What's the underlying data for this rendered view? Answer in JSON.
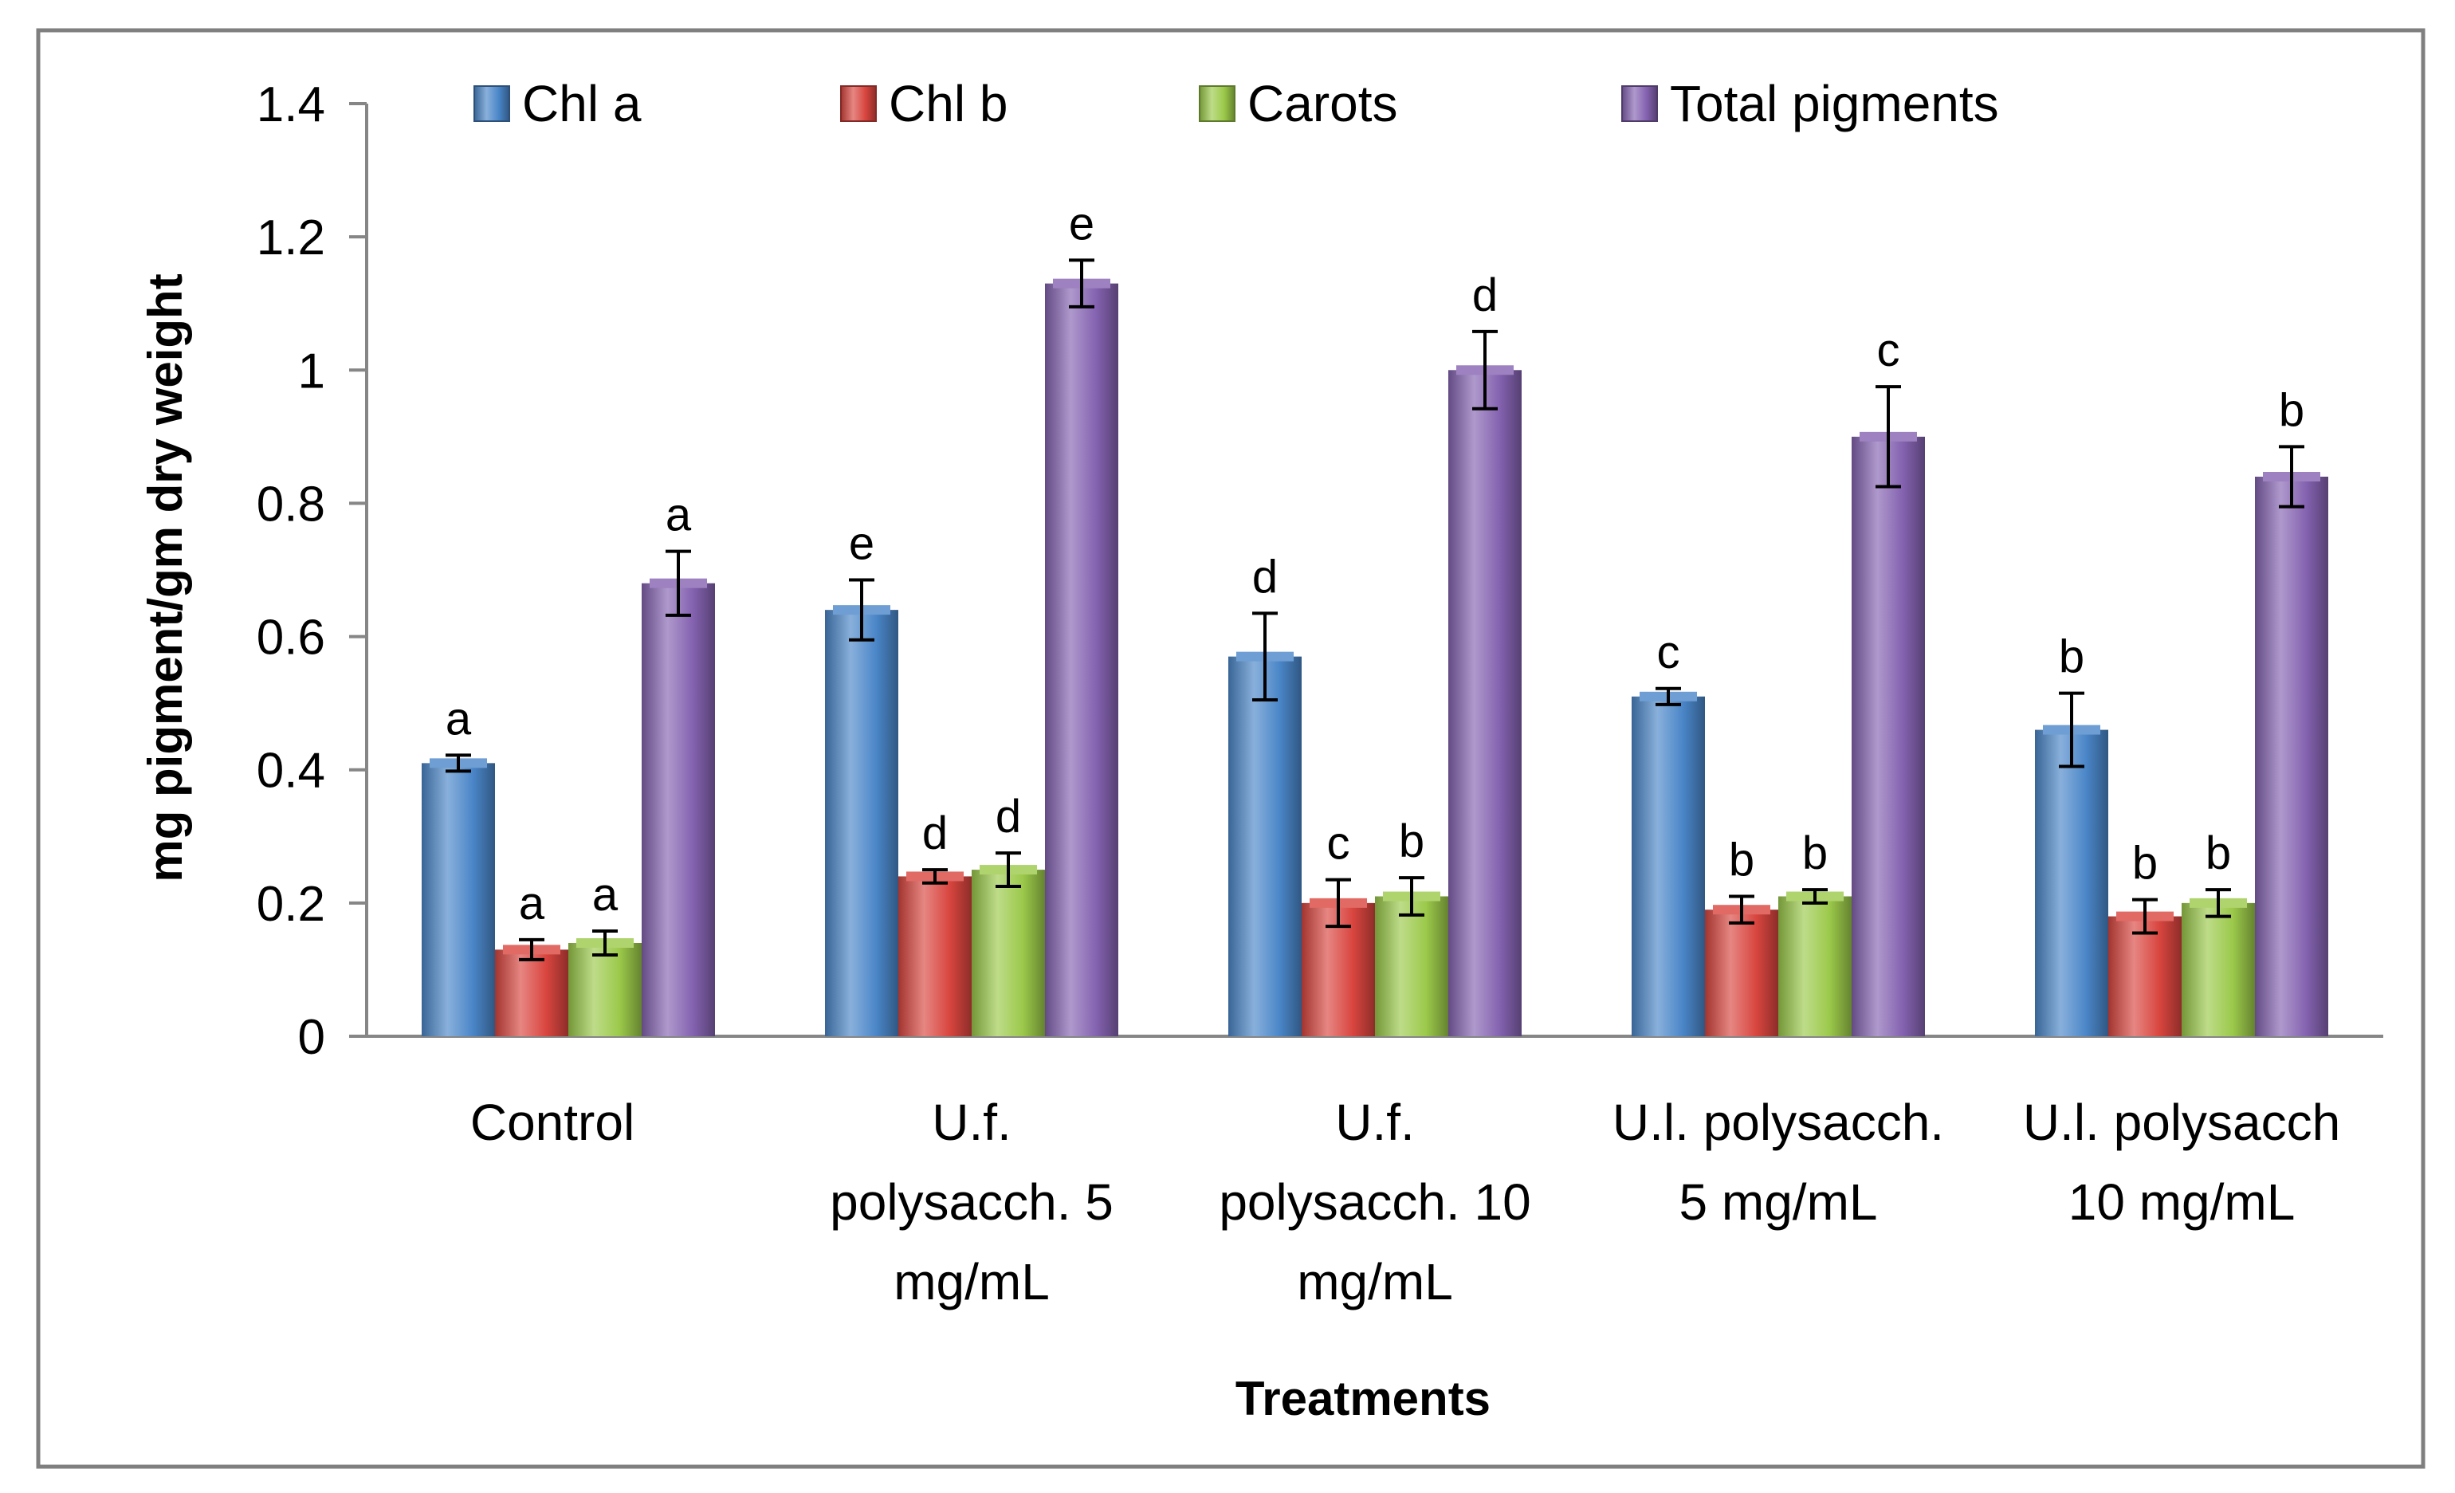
{
  "chart_data": {
    "type": "bar",
    "title": "",
    "xlabel": "Treatments",
    "ylabel": "mg pigment/gm dry weight",
    "ylim": [
      0,
      1.4
    ],
    "yticks": [
      "0",
      "0.2",
      "0.4",
      "0.6",
      "0.8",
      "1",
      "1.2",
      "1.4"
    ],
    "legend_position": "top",
    "categories": [
      [
        "Control"
      ],
      [
        "U.f.",
        "polysacch. 5",
        "mg/mL"
      ],
      [
        "U.f.",
        "polysacch. 10",
        "mg/mL"
      ],
      [
        "U.l. polysacch.",
        "5 mg/mL"
      ],
      [
        "U.l. polysacch",
        "10  mg/mL"
      ]
    ],
    "series": [
      {
        "name": "Chl a",
        "color": "#4a86c8",
        "values": [
          0.41,
          0.64,
          0.57,
          0.51,
          0.46
        ],
        "errors": [
          0.012,
          0.045,
          0.065,
          0.012,
          0.055
        ],
        "letters": [
          "a",
          "e",
          "d",
          "c",
          "b"
        ]
      },
      {
        "name": "Chl b",
        "color": "#d9453f",
        "values": [
          0.13,
          0.24,
          0.2,
          0.19,
          0.18
        ],
        "errors": [
          0.015,
          0.01,
          0.035,
          0.02,
          0.025
        ],
        "letters": [
          "a",
          "d",
          "c",
          "b",
          "b"
        ]
      },
      {
        "name": "Carots",
        "color": "#9bc94a",
        "values": [
          0.14,
          0.25,
          0.21,
          0.21,
          0.2
        ],
        "errors": [
          0.018,
          0.025,
          0.028,
          0.01,
          0.02
        ],
        "letters": [
          "a",
          "d",
          "b",
          "b",
          "b"
        ]
      },
      {
        "name": "Total pigments",
        "color": "#8462b0",
        "values": [
          0.68,
          1.13,
          1.0,
          0.9,
          0.84
        ],
        "errors": [
          0.048,
          0.035,
          0.058,
          0.075,
          0.045
        ],
        "letters": [
          "a",
          "e",
          "d",
          "c",
          "b"
        ]
      }
    ]
  }
}
